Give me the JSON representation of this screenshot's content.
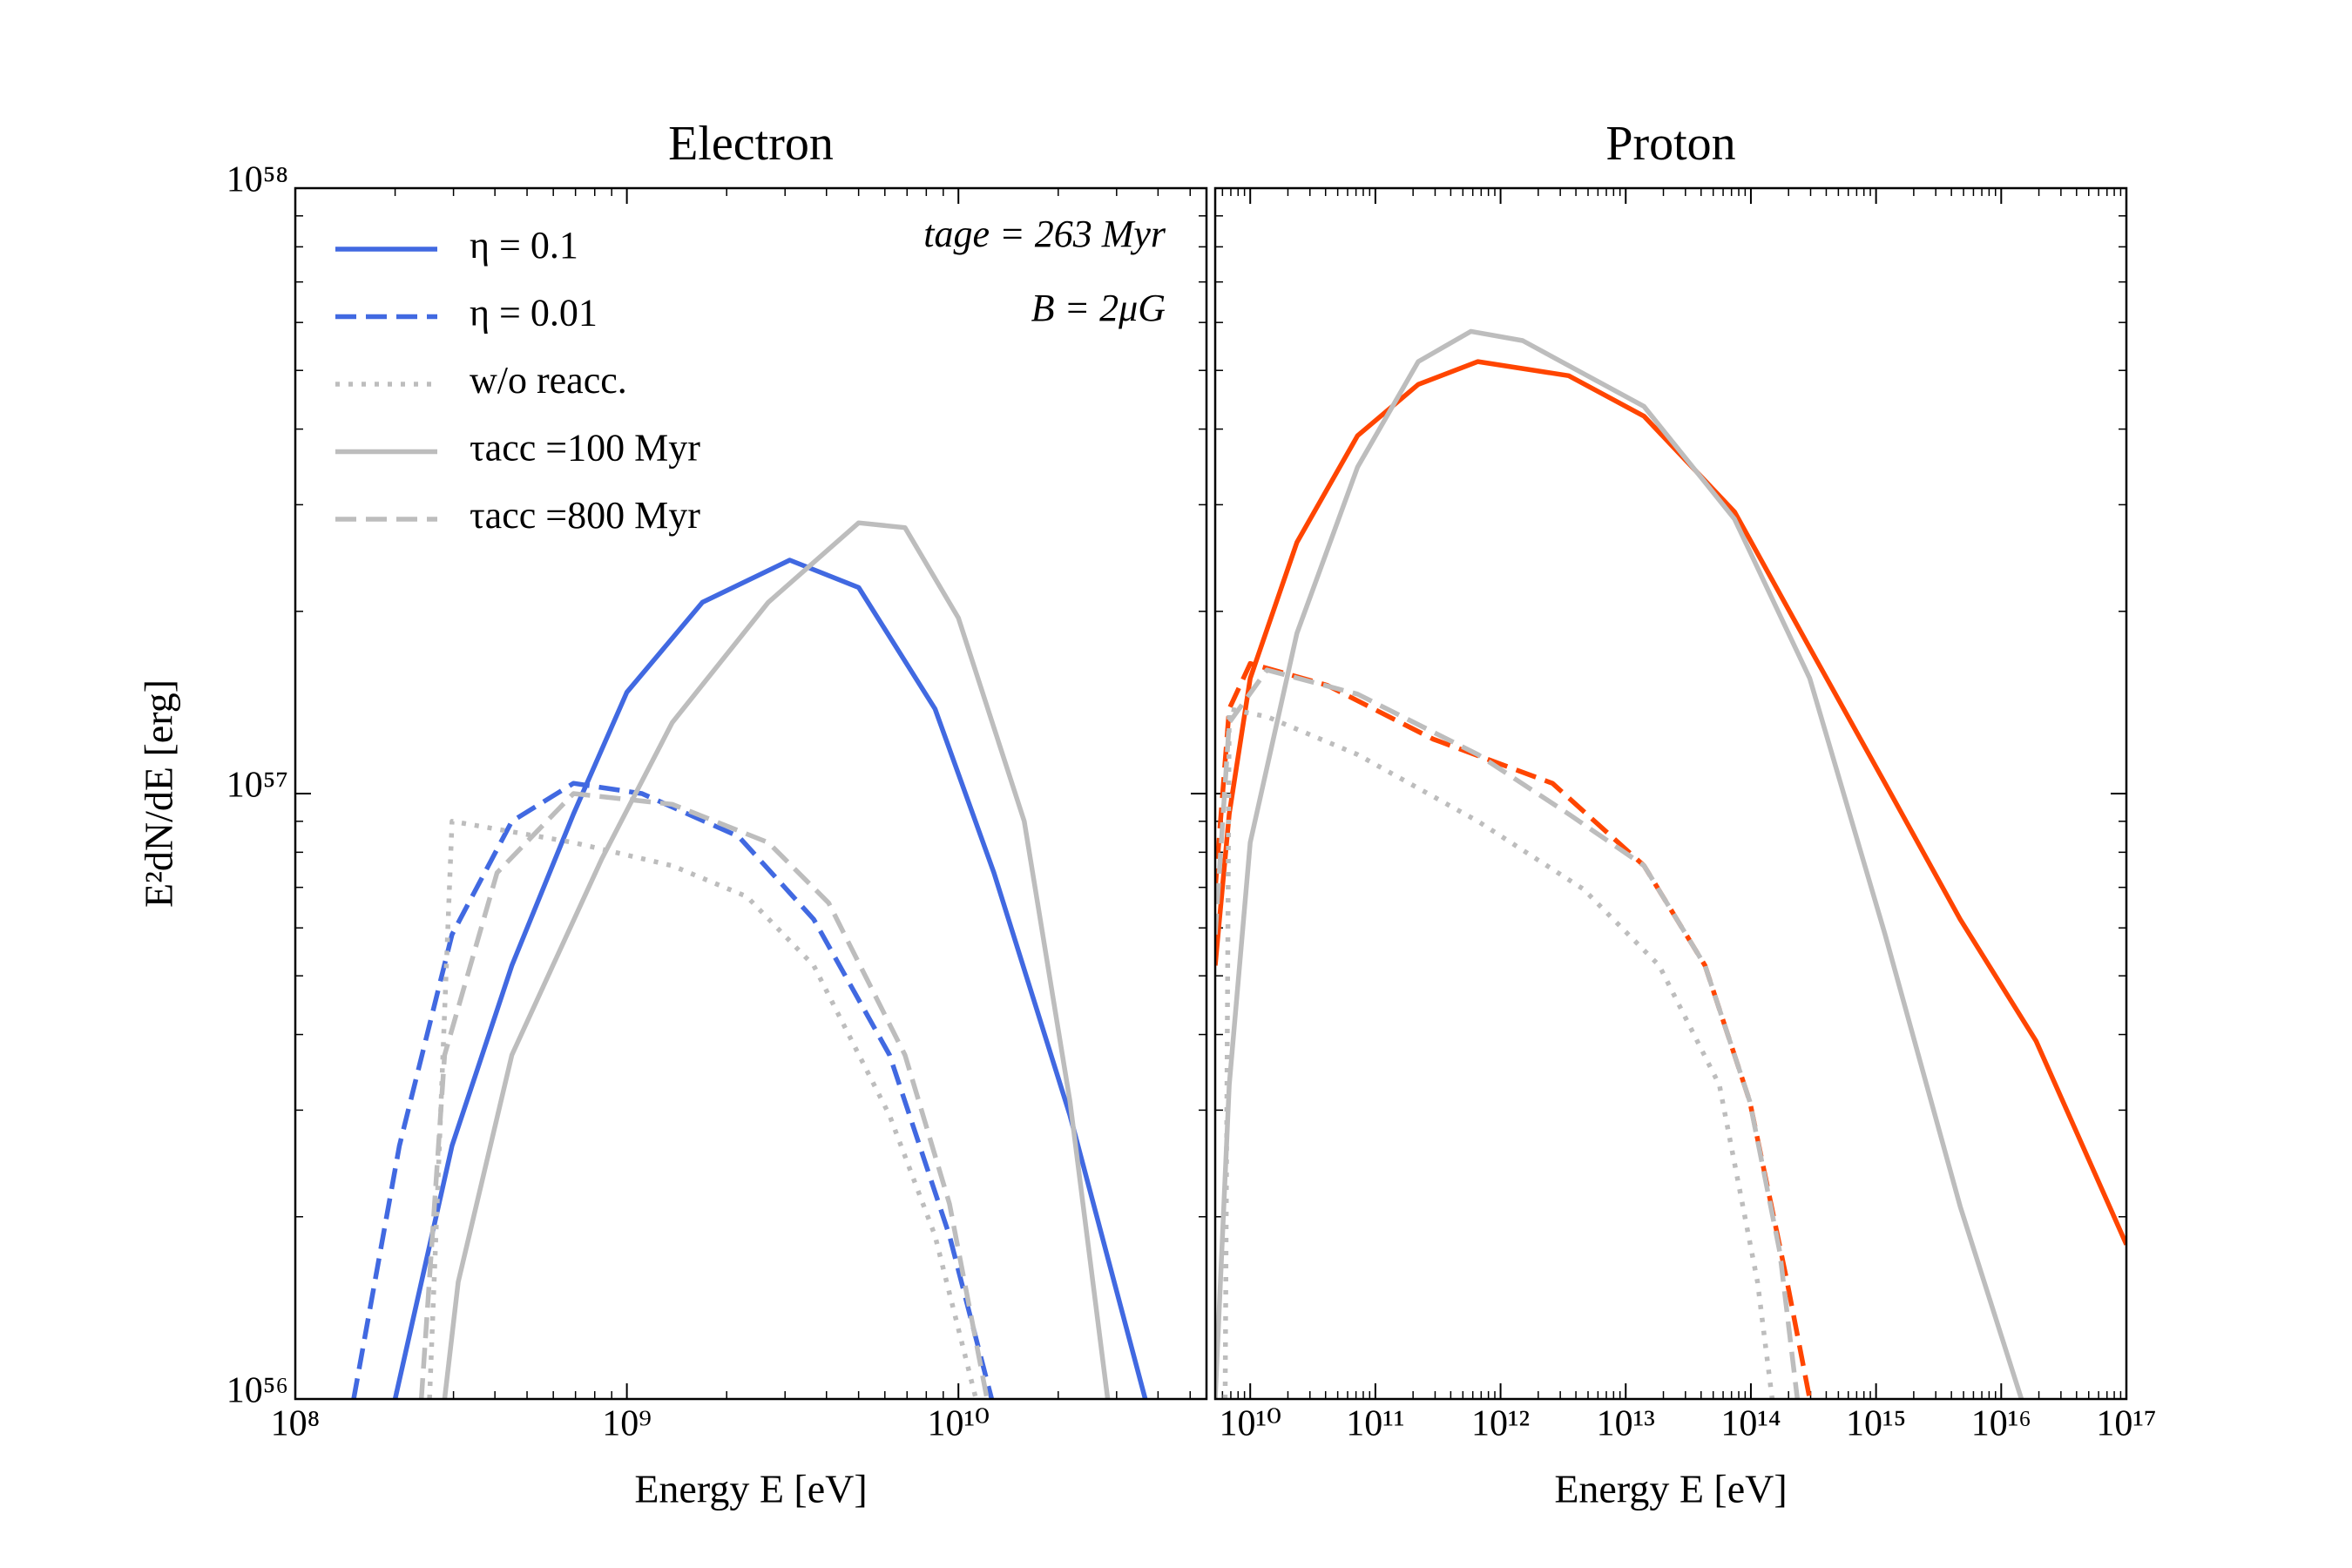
{
  "chart_data": [
    {
      "type": "line",
      "title": "Electron",
      "xlabel": "Energy E [eV]",
      "ylabel": "E²dN/dE [erg]",
      "xscale": "log",
      "yscale": "log",
      "xlim": [
        100000000.0,
        56000000000.0
      ],
      "ylim": [
        1e+56,
        1e+58
      ],
      "xticks": [
        {
          "value": 100000000.0,
          "label": "10⁸"
        },
        {
          "value": 1000000000.0,
          "label": "10⁹"
        },
        {
          "value": 10000000000.0,
          "label": "10¹⁰"
        }
      ],
      "yticks": [
        {
          "value": 1e+56,
          "label": "10⁵⁶"
        },
        {
          "value": 1e+57,
          "label": "10⁵⁷"
        },
        {
          "value": 1e+58,
          "label": "10⁵⁸"
        }
      ],
      "legend": "upper left",
      "annotations": [
        "tage = 263 Myr",
        "B = 2μG"
      ],
      "series": [
        {
          "name": "η = 0.1",
          "color": "#4169e1",
          "linestyle": "solid",
          "x": [
            200000000.0,
            297000000.0,
            450000000.0,
            690000000.0,
            1000000000.0,
            1690000000.0,
            3100000000.0,
            5000000000.0,
            8500000000.0,
            12800000000.0,
            21700000000.0,
            36600000000.0
          ],
          "values": [
            1e+56,
            2.62e+56,
            5.2e+56,
            9.25e+56,
            1.47e+57,
            2.07e+57,
            2.43e+57,
            2.19e+57,
            1.38e+57,
            7.4e+56,
            2.94e+56,
            1e+56
          ]
        },
        {
          "name": "η = 0.01",
          "color": "#4169e1",
          "linestyle": "dashed",
          "x": [
            150000000.0,
            206000000.0,
            297000000.0,
            450000000.0,
            690000000.0,
            1110000000.0,
            2170000000.0,
            3660000000.0,
            6200000000.0,
            9400000000.0,
            12600000000.0
          ],
          "values": [
            1e+56,
            2.62e+56,
            5.85e+56,
            9e+56,
            1.04e+57,
            1e+57,
            8.5e+56,
            6.2e+56,
            3.7e+56,
            1.86e+56,
            1e+56
          ]
        },
        {
          "name": "w/o reacc.",
          "color": "#bdbdbd",
          "linestyle": "dotted",
          "x": [
            254000000.0,
            297000000.0,
            690000000.0,
            1370000000.0,
            2300000000.0,
            3660000000.0,
            6200000000.0,
            8500000000.0,
            11300000000.0
          ],
          "values": [
            1e+56,
            9e+56,
            8.3e+56,
            7.6e+56,
            6.76e+56,
            5.2e+56,
            2.94e+56,
            1.86e+56,
            1e+56
          ]
        },
        {
          "name": "τacc =100 Myr",
          "color": "#bdbdbd",
          "linestyle": "solid",
          "x": [
            282000000.0,
            310000000.0,
            450000000.0,
            840000000.0,
            1370000000.0,
            2670000000.0,
            5000000000.0,
            6900000000.0,
            10000000000.0,
            15800000000.0,
            21700000000.0,
            28200000000.0
          ],
          "values": [
            1e+56,
            1.56e+56,
            3.7e+56,
            7.8e+56,
            1.31e+57,
            2.07e+57,
            2.8e+57,
            2.75e+57,
            1.95e+57,
            9e+56,
            3.1e+56,
            1e+56
          ]
        },
        {
          "name": "τacc =800 Myr",
          "color": "#bdbdbd",
          "linestyle": "dashed",
          "x": [
            240000000.0,
            282000000.0,
            406000000.0,
            690000000.0,
            1370000000.0,
            2670000000.0,
            4060000000.0,
            6900000000.0,
            9400000000.0,
            12200000000.0
          ],
          "values": [
            1e+56,
            3.7e+56,
            7.4e+56,
            1e+57,
            9.6e+56,
            8.3e+56,
            6.6e+56,
            3.7e+56,
            2.1e+56,
            1e+56
          ]
        }
      ]
    },
    {
      "type": "line",
      "title": "Proton",
      "xlabel": "Energy E [eV]",
      "xscale": "log",
      "yscale": "log",
      "xlim": [
        5250000000.0,
        1e+17
      ],
      "ylim": [
        1e+56,
        1e+58
      ],
      "xticks": [
        {
          "value": 10000000000.0,
          "label": "10¹⁰"
        },
        {
          "value": 100000000000.0,
          "label": "10¹¹"
        },
        {
          "value": 1000000000000.0,
          "label": "10¹²"
        },
        {
          "value": 10000000000000.0,
          "label": "10¹³"
        },
        {
          "value": 100000000000000.0,
          "label": "10¹⁴"
        },
        {
          "value": 1000000000000000.0,
          "label": "10¹⁵"
        },
        {
          "value": 1e+16,
          "label": "10¹⁶"
        },
        {
          "value": 1e+17,
          "label": "10¹⁷"
        }
      ],
      "yticks": [
        1e+56,
        1e+57,
        1e+58
      ],
      "show_ytick_labels": false,
      "series": [
        {
          "color": "#ff4500",
          "linestyle": "solid",
          "x": [
            5250000000.0,
            6800000000.0,
            10000000000.0,
            23600000000.0,
            72000000000.0,
            220000000000.0,
            660000000000.0,
            3500000000000.0,
            14000000000000.0,
            74000000000000.0,
            295000000000000.0,
            1180000000000000.0,
            4700000000000000.0,
            1.9e+16,
            1e+17
          ],
          "values": [
            5.2e+56,
            9.25e+56,
            1.55e+57,
            2.6e+57,
            3.9e+57,
            4.74e+57,
            5.17e+57,
            4.9e+57,
            4.2e+57,
            2.92e+57,
            1.74e+57,
            1.04e+57,
            6.2e+56,
            3.9e+56,
            1.8e+56
          ]
        },
        {
          "color": "#bdbdbd",
          "linestyle": "solid",
          "x": [
            5250000000.0,
            6800000000.0,
            10000000000.0,
            23600000000.0,
            72000000000.0,
            220000000000.0,
            580000000000.0,
            1500000000000.0,
            14000000000000.0,
            74000000000000.0,
            295000000000000.0,
            1180000000000000.0,
            4700000000000000.0,
            1.45e+16
          ],
          "values": [
            1e+56,
            3.3e+56,
            8.3e+56,
            1.84e+57,
            3.46e+57,
            5.17e+57,
            5.8e+57,
            5.6e+57,
            4.36e+57,
            2.84e+57,
            1.55e+57,
            5.85e+56,
            2.08e+56,
            1e+56
          ]
        },
        {
          "color": "#ff4500",
          "linestyle": "dashed",
          "x": [
            5250000000.0,
            6800000000.0,
            10000000000.0,
            41000000000.0,
            290000000000.0,
            2600000000000.0,
            14000000000000.0,
            43000000000000.0,
            98000000000000.0,
            195000000000000.0,
            295000000000000.0
          ],
          "values": [
            6.95e+56,
            1.38e+57,
            1.64e+57,
            1.51e+57,
            1.23e+57,
            1.04e+57,
            7.6e+56,
            5.2e+56,
            3.1e+56,
            1.56e+56,
            1e+56
          ]
        },
        {
          "color": "#bdbdbd",
          "linestyle": "dashed",
          "x": [
            5250000000.0,
            6800000000.0,
            13600000000.0,
            72000000000.0,
            660000000000.0,
            3500000000000.0,
            14000000000000.0,
            43000000000000.0,
            98000000000000.0,
            170000000000000.0,
            235000000000000.0
          ],
          "values": [
            5.85e+56,
            1.31e+57,
            1.6e+57,
            1.46e+57,
            1.16e+57,
            9.25e+56,
            7.6e+56,
            5.2e+56,
            3.1e+56,
            1.75e+56,
            1e+56
          ]
        },
        {
          "color": "#bdbdbd",
          "linestyle": "dotted",
          "x": [
            6300000000.0,
            6800000000.0,
            13600000000.0,
            72000000000.0,
            660000000000.0,
            4600000000000.0,
            18500000000000.0,
            56000000000000.0,
            113000000000000.0,
            148000000000000.0
          ],
          "values": [
            1e+56,
            1.38e+57,
            1.34e+57,
            1.16e+57,
            9e+56,
            6.95e+56,
            5.2e+56,
            3.3e+56,
            1.56e+56,
            1e+56
          ]
        }
      ]
    }
  ]
}
